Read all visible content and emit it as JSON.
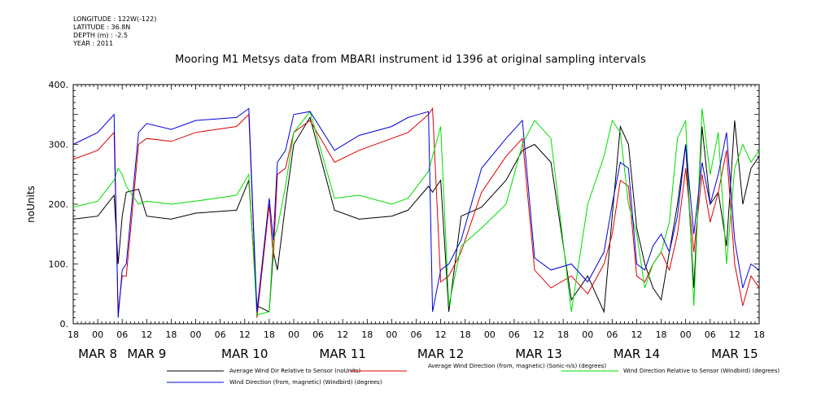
{
  "meta": {
    "longitude": "LONGITUDE : 122W(-122)",
    "latitude": "LATITUDE : 36.8N",
    "depth": "DEPTH (m) : -2.5",
    "year": "YEAR : 2011"
  },
  "chart_data": {
    "type": "line",
    "title": "Mooring M1 Metsys data from MBARI instrument id 1396 at original sampling intervals",
    "ylabel": "noUnits",
    "xlabel": "",
    "ylim": [
      0,
      400
    ],
    "yticks": [
      0,
      100,
      200,
      300,
      400
    ],
    "ytick_labels": [
      "0.",
      "100.",
      "200.",
      "300.",
      "400."
    ],
    "xlim_hours": [
      0,
      168
    ],
    "x_hour_labels": [
      "18",
      "00",
      "06",
      "12",
      "18",
      "00",
      "06",
      "12",
      "18",
      "00",
      "06",
      "12",
      "18",
      "00",
      "06",
      "12",
      "18",
      "00",
      "06",
      "12",
      "18",
      "00",
      "06",
      "12",
      "18",
      "00",
      "06",
      "12",
      "18"
    ],
    "date_labels": [
      {
        "text": "MAR  8",
        "hour": 6
      },
      {
        "text": "MAR  9",
        "hour": 18
      },
      {
        "text": "MAR 10",
        "hour": 42
      },
      {
        "text": "MAR 11",
        "hour": 66
      },
      {
        "text": "MAR 12",
        "hour": 90
      },
      {
        "text": "MAR 13",
        "hour": 114
      },
      {
        "text": "MAR 14",
        "hour": 138
      },
      {
        "text": "MAR 15",
        "hour": 162
      }
    ],
    "grid": false,
    "legend_position": "bottom",
    "series": [
      {
        "name": "Average Wind Dir Relative to Sensor (noUnits)",
        "color": "#000000",
        "x": [
          0,
          6,
          10,
          11,
          12,
          13,
          16,
          18,
          24,
          30,
          40,
          43,
          45,
          48,
          49,
          50,
          52,
          54,
          58,
          64,
          70,
          78,
          82,
          87,
          88,
          90,
          92,
          95,
          100,
          106,
          110,
          113,
          117,
          122,
          126,
          130,
          132,
          134,
          136,
          138,
          140,
          142,
          144,
          146,
          148,
          150,
          152,
          154,
          156,
          158,
          160,
          162,
          164,
          166,
          168
        ],
        "y": [
          175,
          180,
          215,
          100,
          180,
          220,
          225,
          180,
          175,
          185,
          190,
          240,
          30,
          20,
          120,
          90,
          200,
          300,
          345,
          190,
          175,
          180,
          190,
          230,
          220,
          240,
          20,
          180,
          195,
          240,
          290,
          300,
          270,
          40,
          80,
          20,
          180,
          330,
          300,
          160,
          100,
          60,
          40,
          120,
          200,
          300,
          60,
          330,
          200,
          220,
          130,
          340,
          200,
          260,
          280
        ]
      },
      {
        "name": "Average Wind Direction (from, magnetic) (Sonic-n/s) (degrees)",
        "color": "#dd0000",
        "x": [
          0,
          6,
          10,
          11,
          12,
          13,
          16,
          18,
          24,
          30,
          40,
          43,
          45,
          48,
          49,
          50,
          52,
          54,
          58,
          64,
          70,
          78,
          82,
          87,
          88,
          90,
          92,
          95,
          100,
          106,
          110,
          113,
          117,
          122,
          126,
          130,
          132,
          134,
          136,
          138,
          140,
          142,
          144,
          146,
          148,
          150,
          152,
          154,
          156,
          158,
          160,
          162,
          164,
          166,
          168
        ],
        "y": [
          275,
          290,
          320,
          20,
          80,
          80,
          300,
          310,
          305,
          320,
          330,
          350,
          10,
          200,
          110,
          250,
          260,
          320,
          340,
          270,
          290,
          310,
          320,
          350,
          360,
          70,
          80,
          120,
          220,
          280,
          310,
          90,
          60,
          80,
          50,
          100,
          150,
          240,
          230,
          80,
          70,
          100,
          120,
          90,
          150,
          260,
          120,
          250,
          170,
          220,
          290,
          100,
          30,
          80,
          60
        ]
      },
      {
        "name": "Wind Direction Relative to Sensor (Windbird) (degrees)",
        "color": "#00dd00",
        "x": [
          0,
          6,
          10,
          11,
          12,
          13,
          16,
          18,
          24,
          30,
          40,
          43,
          45,
          48,
          49,
          50,
          52,
          54,
          58,
          64,
          70,
          78,
          82,
          87,
          88,
          90,
          92,
          95,
          100,
          106,
          110,
          113,
          117,
          122,
          126,
          130,
          132,
          134,
          136,
          138,
          140,
          142,
          144,
          146,
          148,
          150,
          152,
          154,
          156,
          158,
          160,
          162,
          164,
          166,
          168
        ],
        "y": [
          195,
          205,
          240,
          260,
          250,
          230,
          200,
          205,
          200,
          205,
          215,
          250,
          15,
          20,
          140,
          160,
          230,
          320,
          355,
          210,
          215,
          200,
          210,
          255,
          280,
          330,
          30,
          130,
          160,
          200,
          300,
          340,
          310,
          20,
          200,
          280,
          340,
          320,
          200,
          150,
          60,
          100,
          120,
          170,
          310,
          340,
          30,
          360,
          250,
          320,
          100,
          260,
          300,
          270,
          290
        ]
      },
      {
        "name": "Wind Direction (from, magnetic) (Windbird) (degrees)",
        "color": "#0000dd",
        "x": [
          0,
          6,
          10,
          11,
          12,
          13,
          16,
          18,
          24,
          30,
          40,
          43,
          45,
          48,
          49,
          50,
          52,
          54,
          58,
          64,
          70,
          78,
          82,
          87,
          88,
          90,
          92,
          95,
          100,
          106,
          110,
          113,
          117,
          122,
          126,
          130,
          132,
          134,
          136,
          138,
          140,
          142,
          144,
          146,
          148,
          150,
          152,
          154,
          156,
          158,
          160,
          162,
          164,
          166,
          168
        ],
        "y": [
          300,
          320,
          350,
          10,
          90,
          100,
          320,
          335,
          325,
          340,
          345,
          360,
          20,
          210,
          140,
          270,
          290,
          350,
          355,
          290,
          315,
          330,
          345,
          355,
          20,
          90,
          100,
          140,
          260,
          310,
          340,
          110,
          90,
          100,
          70,
          120,
          200,
          270,
          260,
          100,
          90,
          130,
          150,
          120,
          180,
          300,
          150,
          270,
          200,
          250,
          320,
          140,
          60,
          100,
          90
        ]
      }
    ]
  }
}
